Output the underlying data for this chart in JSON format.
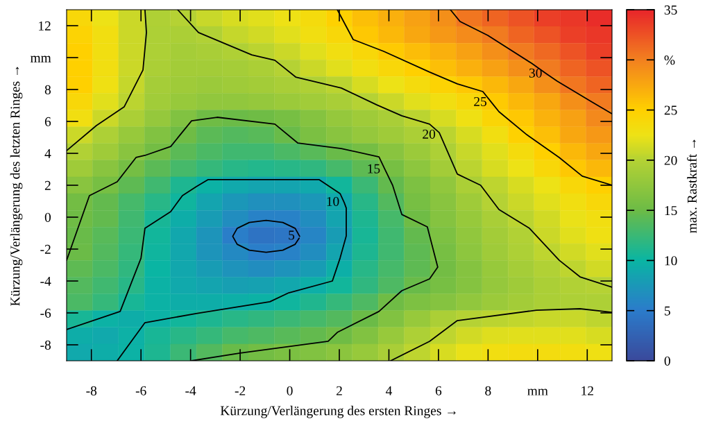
{
  "chart_data": {
    "type": "heatmap",
    "xlabel": "Kürzung/Verlängerung des ersten Ringes →",
    "ylabel": "Kürzung/Verlängerung des letzten Ringes →",
    "clabel": "max. Rastkraft →",
    "xlim": [
      -9,
      13
    ],
    "ylim": [
      -9,
      13
    ],
    "xticks": [
      -8,
      -6,
      -4,
      -2,
      0,
      2,
      4,
      6,
      8,
      {
        "value": 10,
        "label": "mm"
      },
      12
    ],
    "yticks": [
      -8,
      -6,
      -4,
      -2,
      0,
      2,
      4,
      6,
      8,
      {
        "value": 10,
        "label": "mm"
      },
      12
    ],
    "clim": [
      0,
      35
    ],
    "cticks": [
      0,
      5,
      10,
      15,
      20,
      25,
      {
        "value": 30,
        "label": "%"
      },
      35
    ],
    "cells": [
      [
        24,
        22.5,
        21,
        19.6,
        20,
        20.8,
        21.5,
        22,
        22.6,
        23.5,
        24.8,
        26,
        27,
        28,
        29,
        30.5,
        31.5,
        32.5,
        33.5,
        34,
        34.5
      ],
      [
        24.5,
        23,
        21,
        19.5,
        19.3,
        19.8,
        20.7,
        21.3,
        22,
        23,
        24,
        25.5,
        26.5,
        27.5,
        28.5,
        29.3,
        30.3,
        31.5,
        32.5,
        33.5,
        34
      ],
      [
        25,
        23,
        21,
        19.5,
        19,
        19.2,
        19.6,
        20.3,
        21,
        22,
        23,
        24,
        25.3,
        26.2,
        27,
        28,
        29,
        30.3,
        31.3,
        32.5,
        33.5
      ],
      [
        25,
        23,
        21,
        19.3,
        18.8,
        18.8,
        19,
        19.4,
        20,
        21,
        22,
        23,
        24,
        25,
        26,
        27,
        28,
        29,
        30.3,
        31.5,
        32.5
      ],
      [
        25,
        22.8,
        20.7,
        19,
        18.5,
        18.3,
        18.5,
        18.8,
        19.2,
        19.6,
        20.3,
        21.5,
        22.5,
        23.5,
        24.5,
        25.5,
        26.5,
        27.5,
        29,
        30.5,
        31.5
      ],
      [
        24,
        22,
        20.3,
        18.7,
        18,
        17.5,
        17.5,
        17.8,
        18.2,
        18.7,
        19.2,
        20,
        21,
        22,
        23,
        24,
        25.3,
        26.5,
        27.5,
        29,
        30.3
      ],
      [
        23,
        21,
        19.3,
        17.8,
        16.5,
        15.3,
        15,
        15.2,
        15.8,
        16.8,
        17.8,
        18.5,
        19.2,
        20.3,
        21.5,
        22.8,
        24.3,
        25.5,
        26.8,
        28,
        29.5
      ],
      [
        21,
        19.5,
        18,
        16.5,
        15.2,
        14.2,
        13.8,
        14,
        14.8,
        16,
        17,
        17.8,
        18.5,
        19.3,
        20.3,
        21.5,
        23,
        24.8,
        26,
        27.5,
        28.5
      ],
      [
        19.8,
        18.5,
        17,
        15.5,
        14.2,
        13.3,
        12.8,
        12.8,
        13.3,
        14,
        14.8,
        15.6,
        17,
        18.3,
        19.5,
        20.8,
        22,
        23.5,
        25,
        26.5,
        27.5
      ],
      [
        18.5,
        17,
        15.7,
        14.2,
        13,
        12.2,
        11.5,
        11.3,
        11.5,
        12,
        13,
        14.3,
        15.8,
        17.3,
        18.8,
        20.3,
        21.5,
        22.5,
        24,
        25.5,
        26.5
      ],
      [
        17,
        15.8,
        14.3,
        12.8,
        11,
        9.8,
        9,
        8.5,
        8.5,
        9,
        10.5,
        12.5,
        14.5,
        16.2,
        17.5,
        19.3,
        20.5,
        21.5,
        22.5,
        24,
        25
      ],
      [
        15.5,
        14.5,
        13,
        11.5,
        10.3,
        8.5,
        7.5,
        6.8,
        6.8,
        7.5,
        9,
        11.5,
        13.8,
        15.8,
        17,
        18.5,
        20,
        21,
        22,
        23,
        24
      ],
      [
        15.3,
        14.5,
        12.8,
        10.8,
        9.3,
        7.8,
        6.5,
        5.5,
        5.5,
        6.5,
        8.5,
        11,
        13,
        15.3,
        16.8,
        18,
        19.2,
        20.3,
        21.3,
        22.3,
        23
      ],
      [
        14.8,
        14,
        12.5,
        10.5,
        8.8,
        7.2,
        5.3,
        4.2,
        4.5,
        5.8,
        7.8,
        10.8,
        12.8,
        14.5,
        16.2,
        17.5,
        18.8,
        19.7,
        21,
        22,
        22.8
      ],
      [
        15,
        13.8,
        12.3,
        10.3,
        8.8,
        7.2,
        6.2,
        5.3,
        5.6,
        6.5,
        8.5,
        11,
        12.8,
        14.3,
        15.8,
        17.3,
        18.5,
        19.5,
        20.5,
        21.3,
        22
      ],
      [
        14.3,
        13.3,
        12,
        10,
        8.8,
        7.8,
        7,
        6.5,
        7,
        7.8,
        9.5,
        11.5,
        13,
        14.3,
        15.5,
        16.8,
        18,
        19,
        19.8,
        20.5,
        21.2
      ],
      [
        13.8,
        12.8,
        11.5,
        9.8,
        9,
        8.5,
        8.2,
        8.3,
        8.8,
        9.5,
        10.5,
        12,
        13.5,
        14.8,
        15.8,
        16.8,
        17.8,
        18.5,
        19.3,
        19.7,
        20
      ],
      [
        13.3,
        12.3,
        10.8,
        9.8,
        9.3,
        9.3,
        9.5,
        9.8,
        10.3,
        11.2,
        12.3,
        13.5,
        15.2,
        16.2,
        16.8,
        17.5,
        18.3,
        18.8,
        19.3,
        19.5,
        19.5
      ],
      [
        10.8,
        9.8,
        9.3,
        9.8,
        10.5,
        11,
        11.5,
        12,
        12.5,
        13,
        13.8,
        15,
        16.5,
        18,
        19.3,
        20,
        20.3,
        20.6,
        20.8,
        20.8,
        20.5
      ],
      [
        9.3,
        9,
        9.6,
        10.7,
        11.5,
        12.3,
        13,
        13.5,
        14,
        14.5,
        15.3,
        16.5,
        18,
        19.5,
        20.5,
        21.3,
        21.8,
        22,
        22,
        22,
        21.5
      ],
      [
        9,
        9.3,
        9.8,
        11,
        12.5,
        13.8,
        14.8,
        15.5,
        16,
        16.5,
        17.2,
        18,
        19.2,
        20.5,
        21.5,
        22.3,
        23,
        23.3,
        23.3,
        23.2,
        22.8
      ]
    ],
    "series": [
      {
        "type": "line",
        "color": "#000000",
        "x": [
          0.4,
          0.22,
          -0.28,
          -0.95,
          -1.63,
          -2.12,
          -2.3,
          -2.12,
          -1.63,
          -0.95,
          -0.28,
          0.22,
          0.38
        ],
        "values": [
          -1.2,
          -0.7,
          -0.33,
          -0.2,
          -0.33,
          -0.7,
          -1.2,
          -1.7,
          -2.07,
          -2.2,
          -2.07,
          -1.7,
          -1.32
        ]
      },
      {
        "type": "line",
        "color": "#000000",
        "x": [
          -9,
          -6.84,
          -6,
          -5.84,
          -4.8,
          -4.33,
          -3.77,
          -3.3,
          1.19,
          2.03,
          2.2,
          2.28,
          2.28,
          2.03,
          1.72,
          -0.04,
          -0.8,
          -3.77,
          -5.84,
          -6.96
        ],
        "values": [
          -7.04,
          -5.91,
          -2.57,
          -0.7,
          0.35,
          1.35,
          1.91,
          2.35,
          2.35,
          1.48,
          0.91,
          0.57,
          -1.17,
          -2.57,
          -4.0,
          -4.74,
          -5.3,
          -6.04,
          -6.61,
          -9
        ]
      },
      {
        "type": "line",
        "color": "#000000",
        "x": [
          -9,
          -8.08,
          -6.96,
          -6.2,
          -5.84,
          -4.8,
          -3.96,
          -2.93,
          -0.6,
          0.32,
          2.08,
          3.6,
          3.85,
          4.15,
          4.52,
          5.55,
          5.97,
          5.64,
          4.52,
          3.6,
          1.92,
          1.55,
          -2.0,
          -3.96
        ],
        "values": [
          -2.7,
          1.35,
          2.22,
          3.74,
          3.87,
          4.43,
          6.04,
          6.26,
          5.83,
          4.65,
          4.3,
          3.78,
          2.96,
          2.0,
          0.17,
          -0.61,
          -3.13,
          -3.87,
          -4.61,
          -5.91,
          -7.22,
          -7.78,
          -8.52,
          -9
        ]
      },
      {
        "type": "line",
        "color": "#000000",
        "x": [
          -9,
          -7.8,
          -6.68,
          -5.92,
          -5.78,
          -5.84
        ],
        "values": [
          4.17,
          5.74,
          6.91,
          9.22,
          11.57,
          13
        ]
      },
      {
        "type": "line",
        "color": "#000000",
        "x": [
          -4.52,
          -3.68,
          -1.53,
          -0.6,
          0.24,
          2.08,
          3.51,
          4.52,
          5.64,
          6.03,
          6.08,
          6.76,
          7.7,
          8.44,
          9.67,
          10.87,
          11.71,
          13
        ],
        "values": [
          13,
          11.57,
          10.17,
          9.83,
          8.78,
          8.09,
          7.04,
          6.35,
          5.83,
          5.3,
          5.13,
          2.7,
          2.0,
          0.48,
          -0.7,
          -2.7,
          -3.74,
          -4.39
        ]
      },
      {
        "type": "line",
        "color": "#000000",
        "x": [
          4.07,
          5.64,
          6.76,
          9.95,
          11.71,
          13
        ],
        "values": [
          -9,
          -7.78,
          -6.48,
          -5.83,
          -5.74,
          -5.96
        ]
      },
      {
        "type": "line",
        "color": "#000000",
        "x": [
          1.92,
          2.56,
          3.79,
          5.64,
          6.76,
          7.79,
          8.15,
          8.44,
          9.56,
          10.87,
          11.8,
          13
        ],
        "values": [
          13,
          11.13,
          10.39,
          9.09,
          8.35,
          7.87,
          7.17,
          6.61,
          5.17,
          3.74,
          2.57,
          2.0
        ]
      },
      {
        "type": "line",
        "color": "#000000",
        "x": [
          6.48,
          6.87,
          7.99,
          9.75,
          10.38,
          10.79,
          12.19,
          13
        ],
        "values": [
          13,
          12.26,
          11.39,
          9.65,
          8.96,
          8.52,
          7.22,
          6.48
        ]
      }
    ],
    "annotations": [
      {
        "text": "5",
        "x": 0.4,
        "y": -1.2
      },
      {
        "text": "10",
        "x": 2.2,
        "y": 0.91
      },
      {
        "text": "15",
        "x": 3.85,
        "y": 2.96
      },
      {
        "text": "20",
        "x": 6.08,
        "y": 5.13
      },
      {
        "text": "25",
        "x": 8.15,
        "y": 7.17
      },
      {
        "text": "30",
        "x": 10.38,
        "y": 8.96
      }
    ]
  }
}
